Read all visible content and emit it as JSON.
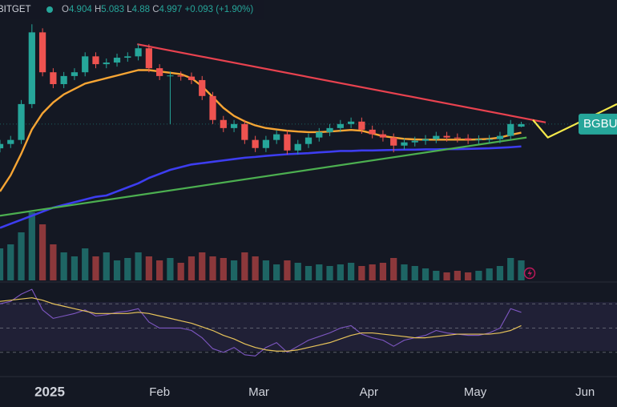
{
  "chart_data": {
    "type": "candlestick",
    "source": "BITGET",
    "ohlc_labels": [
      "O",
      "H",
      "L",
      "C"
    ],
    "change": "+0.093 (+1.90%)",
    "price_label": "BGBU",
    "xlim": [
      0,
      58
    ],
    "ylim": [
      -0.8,
      9.6
    ],
    "xticks": [
      {
        "value": 4.67,
        "label": "2025"
      },
      {
        "value": 15,
        "label": "Feb"
      },
      {
        "value": 24.33,
        "label": "Mar"
      },
      {
        "value": 34.67,
        "label": "Apr"
      },
      {
        "value": 44.67,
        "label": "May"
      },
      {
        "value": 55,
        "label": "Jun"
      }
    ],
    "up_color": "#26a69a",
    "down_color": "#ef5350",
    "open": [
      4.1,
      4.26,
      4.41,
      5.74,
      8.4,
      6.92,
      6.48,
      6.78,
      6.92,
      7.51,
      7.22,
      7.28,
      7.46,
      7.51,
      7.81,
      7.07,
      6.78,
      6.8,
      6.76,
      6.63,
      6.04,
      5.15,
      4.85,
      5.0,
      4.41,
      4.11,
      4.41,
      4.62,
      4.02,
      4.26,
      4.5,
      4.7,
      4.85,
      5.0,
      5.09,
      4.79,
      4.62,
      4.5,
      4.2,
      4.32,
      4.38,
      4.44,
      4.56,
      4.5,
      4.47,
      4.41,
      4.43,
      4.44,
      4.56,
      4.904
    ],
    "high": [
      4.41,
      4.56,
      5.89,
      8.7,
      8.55,
      7.07,
      6.93,
      7.07,
      7.66,
      7.66,
      7.43,
      7.61,
      7.66,
      7.96,
      7.96,
      7.22,
      6.95,
      6.95,
      6.91,
      6.78,
      6.19,
      5.3,
      5.15,
      5.15,
      4.56,
      4.56,
      4.77,
      4.77,
      4.41,
      4.65,
      4.85,
      5.0,
      5.15,
      5.24,
      5.24,
      4.94,
      4.77,
      4.65,
      4.47,
      4.53,
      4.59,
      4.71,
      4.71,
      4.65,
      4.62,
      4.58,
      4.59,
      4.71,
      5.15,
      5.083
    ],
    "low": [
      3.95,
      4.11,
      4.26,
      5.59,
      6.77,
      6.33,
      6.33,
      6.63,
      6.77,
      7.07,
      7.07,
      7.13,
      7.31,
      7.36,
      6.92,
      6.63,
      5.0,
      6.61,
      6.48,
      5.89,
      5.0,
      4.7,
      4.7,
      4.26,
      3.96,
      3.96,
      4.26,
      3.87,
      3.87,
      4.11,
      4.35,
      4.55,
      4.7,
      4.85,
      4.64,
      4.47,
      4.35,
      3.95,
      4.05,
      4.17,
      4.23,
      4.29,
      4.35,
      4.32,
      4.26,
      4.26,
      4.28,
      4.29,
      4.41,
      4.88
    ],
    "close": [
      4.26,
      4.41,
      5.74,
      8.4,
      6.92,
      6.48,
      6.78,
      6.92,
      7.51,
      7.22,
      7.28,
      7.46,
      7.51,
      7.81,
      7.07,
      6.78,
      6.8,
      6.76,
      6.63,
      6.04,
      5.15,
      4.85,
      5.0,
      4.41,
      4.11,
      4.41,
      4.62,
      4.02,
      4.26,
      4.5,
      4.7,
      4.85,
      5.0,
      5.09,
      4.79,
      4.62,
      4.5,
      4.2,
      4.32,
      4.38,
      4.44,
      4.56,
      4.5,
      4.47,
      4.41,
      4.43,
      4.44,
      4.56,
      5.0,
      4.997
    ],
    "ma_fast": {
      "color": "#f7a534",
      "values": [
        2.5,
        3.1,
        3.9,
        4.8,
        5.4,
        5.8,
        6.1,
        6.3,
        6.5,
        6.6,
        6.7,
        6.8,
        6.9,
        7.0,
        7.0,
        6.95,
        6.9,
        6.85,
        6.7,
        6.4,
        6.0,
        5.6,
        5.3,
        5.1,
        4.95,
        4.85,
        4.8,
        4.75,
        4.72,
        4.7,
        4.7,
        4.72,
        4.75,
        4.78,
        4.75,
        4.65,
        4.55,
        4.5,
        4.45,
        4.43,
        4.42,
        4.42,
        4.42,
        4.42,
        4.42,
        4.43,
        4.45,
        4.5,
        4.6,
        4.68
      ]
    },
    "ma_slow": {
      "color": "#3d3df0",
      "values": [
        1.15,
        1.3,
        1.45,
        1.6,
        1.75,
        1.9,
        2.0,
        2.1,
        2.2,
        2.3,
        2.35,
        2.5,
        2.65,
        2.8,
        3.0,
        3.15,
        3.3,
        3.4,
        3.5,
        3.55,
        3.6,
        3.65,
        3.7,
        3.75,
        3.78,
        3.82,
        3.85,
        3.88,
        3.9,
        3.92,
        3.95,
        3.97,
        4.0,
        4.0,
        4.02,
        4.02,
        4.03,
        4.04,
        4.05,
        4.05,
        4.06,
        4.06,
        4.07,
        4.07,
        4.08,
        4.09,
        4.1,
        4.12,
        4.14,
        4.17
      ]
    },
    "trendlines": [
      {
        "color": "#e8424f",
        "x": [
          12.9,
          51.3
        ],
        "y": [
          7.96,
          5.06
        ]
      },
      {
        "color": "#4caf50",
        "x": [
          0,
          49.5
        ],
        "y": [
          1.6,
          4.5
        ]
      },
      {
        "color": "#f5e94a",
        "x": [
          50.1,
          51.5,
          58
        ],
        "y": [
          5.15,
          4.5,
          5.74
        ]
      }
    ],
    "volume": {
      "vlim": [
        0,
        100
      ],
      "values": [
        40,
        45,
        60,
        85,
        70,
        45,
        35,
        30,
        40,
        30,
        35,
        25,
        28,
        35,
        30,
        25,
        28,
        22,
        30,
        35,
        30,
        28,
        25,
        35,
        30,
        25,
        20,
        25,
        22,
        18,
        20,
        18,
        20,
        22,
        18,
        20,
        22,
        28,
        20,
        18,
        15,
        12,
        10,
        12,
        10,
        12,
        15,
        18,
        28,
        25
      ]
    },
    "rsi": {
      "rlim": [
        10,
        88
      ],
      "bands": [
        30,
        50,
        70
      ],
      "color": "#7e57c2",
      "ma_color": "#e8c45a",
      "values": [
        70,
        72,
        78,
        82,
        65,
        58,
        60,
        62,
        65,
        60,
        61,
        63,
        64,
        66,
        55,
        50,
        50,
        50,
        48,
        42,
        33,
        30,
        34,
        28,
        27,
        34,
        38,
        30,
        35,
        40,
        43,
        46,
        50,
        52,
        45,
        42,
        40,
        35,
        40,
        42,
        44,
        48,
        46,
        45,
        44,
        44,
        46,
        50,
        66,
        63
      ],
      "ma_values": [
        72,
        73,
        74,
        75,
        73,
        70,
        68,
        66,
        64,
        62,
        62,
        62,
        62,
        63,
        62,
        60,
        58,
        56,
        54,
        51,
        48,
        44,
        41,
        37,
        34,
        32,
        31,
        31,
        32,
        34,
        36,
        38,
        41,
        44,
        46,
        46,
        45,
        44,
        43,
        42,
        42,
        43,
        44,
        45,
        45,
        45,
        45,
        46,
        48,
        52
      ]
    }
  }
}
